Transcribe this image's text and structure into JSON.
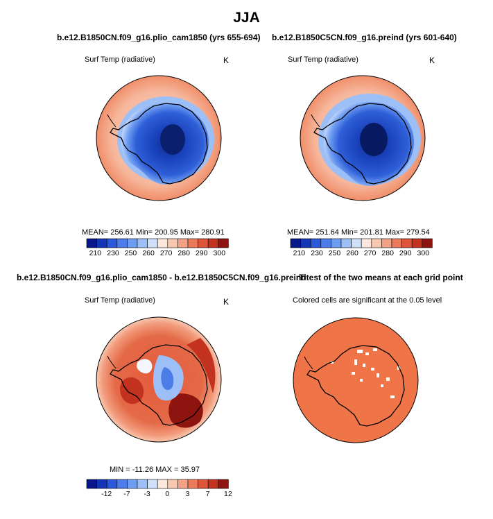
{
  "figure": {
    "season_title": "JJA",
    "colors": {
      "ocean_warm": "#f6b79c",
      "ocean_outer": "#f08e6a",
      "ice_deep": "#0c2c8a",
      "ice_mid": "#2f5fd8",
      "sig_fill": "#ef7447",
      "outline": "#000000"
    }
  },
  "panels": [
    {
      "id": "pliocene",
      "title": "b.e12.B1850CN.f09_g16.plio_cam1850 (yrs 655-694)",
      "variable": "Surf Temp (radiative)",
      "units": "K",
      "stats": "MEAN= 256.61   Min= 200.95   Max= 280.91"
    },
    {
      "id": "preindustrial",
      "title": "b.e12.B1850C5CN.f09_g16.preind (yrs 601-640)",
      "variable": "Surf Temp (radiative)",
      "units": "K",
      "stats": "MEAN= 251.64   Min= 201.81   Max= 279.54"
    },
    {
      "id": "difference",
      "title": "b.e12.B1850CN.f09_g16.plio_cam1850 - b.e12.B1850C5CN.f09_g16.preind",
      "variable": "Surf Temp (radiative)",
      "units": "K",
      "stats": "MIN = -11.26  MAX =   35.97"
    },
    {
      "id": "ttest",
      "title": "T-test of the two means at each grid point",
      "note": "Colored cells are significant at the 0.05 level"
    }
  ],
  "chart_data": [
    {
      "type": "heatmap",
      "panel": "pliocene",
      "title": "Surf Temp (radiative)",
      "units": "K",
      "projection": "south polar stereographic",
      "colorbar": {
        "tick_labels": [
          "210",
          "230",
          "250",
          "260",
          "270",
          "280",
          "290",
          "300"
        ],
        "colors": [
          "#08178a",
          "#1536b4",
          "#2a59d9",
          "#4b7ce8",
          "#6f9df2",
          "#9cbff7",
          "#cfe0fb",
          "#fbe7dc",
          "#f8c8b0",
          "#f3a185",
          "#ec7a5c",
          "#dd5439",
          "#c3321f",
          "#8e140f"
        ]
      },
      "mean": 256.61,
      "min": 200.95,
      "max": 280.91
    },
    {
      "type": "heatmap",
      "panel": "preindustrial",
      "title": "Surf Temp (radiative)",
      "units": "K",
      "projection": "south polar stereographic",
      "colorbar": {
        "tick_labels": [
          "210",
          "230",
          "250",
          "260",
          "270",
          "280",
          "290",
          "300"
        ],
        "colors": [
          "#08178a",
          "#1536b4",
          "#2a59d9",
          "#4b7ce8",
          "#6f9df2",
          "#9cbff7",
          "#cfe0fb",
          "#fbe7dc",
          "#f8c8b0",
          "#f3a185",
          "#ec7a5c",
          "#dd5439",
          "#c3321f",
          "#8e140f"
        ]
      },
      "mean": 251.64,
      "min": 201.81,
      "max": 279.54
    },
    {
      "type": "heatmap",
      "panel": "difference",
      "title": "Surf Temp (radiative)",
      "units": "K",
      "projection": "south polar stereographic",
      "colorbar": {
        "tick_labels": [
          "-12",
          "-7",
          "-3",
          "0",
          "3",
          "7",
          "12"
        ],
        "colors": [
          "#08178a",
          "#1536b4",
          "#2a59d9",
          "#4b7ce8",
          "#6f9df2",
          "#9cbff7",
          "#cfe0fb",
          "#fbe7dc",
          "#f8c8b0",
          "#f3a185",
          "#ec7a5c",
          "#dd5439",
          "#c3321f",
          "#8e140f"
        ]
      },
      "min": -11.26,
      "max": 35.97
    },
    {
      "type": "heatmap",
      "panel": "ttest",
      "title": "T-test of the two means at each grid point",
      "projection": "south polar stereographic",
      "significance_level": 0.05
    }
  ]
}
